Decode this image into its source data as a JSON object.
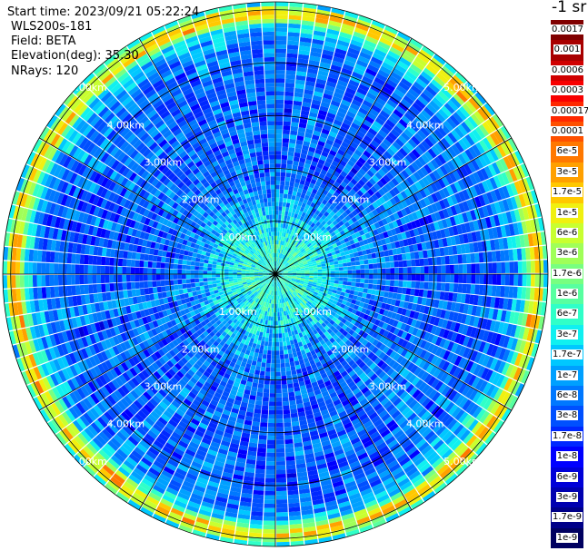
{
  "info": {
    "start_time": "Start time: 2023/09/21 05:22:24",
    "instrument": "WLS200s-181",
    "field": "Field: BETA",
    "elevation": "Elevation(deg): 35.30",
    "nrays": "NRays: 120"
  },
  "colorbar": {
    "unit": "-1 sr",
    "labels": [
      "0.0017",
      "0.001",
      "0.0006",
      "0.0003",
      "0.00017",
      "0.0001",
      "6e-5",
      "3e-5",
      "1.7e-5",
      "1e-5",
      "6e-6",
      "3e-6",
      "1.7e-6",
      "1e-6",
      "6e-7",
      "3e-7",
      "1.7e-7",
      "1e-7",
      "6e-8",
      "3e-8",
      "1.7e-8",
      "1e-8",
      "6e-9",
      "3e-9",
      "1.7e-9",
      "1e-9"
    ],
    "colors": [
      "#800000",
      "#a80000",
      "#d00000",
      "#f80000",
      "#ff2800",
      "#ff5000",
      "#ff7800",
      "#ffa000",
      "#ffc800",
      "#f0f010",
      "#c8ff30",
      "#a0ff58",
      "#78ff80",
      "#58ffa0",
      "#30ffc8",
      "#10f0f0",
      "#00c8ff",
      "#00a0ff",
      "#0078ff",
      "#0050ff",
      "#0028ff",
      "#0000ff",
      "#0000d8",
      "#0000b0",
      "#000088",
      "#000060"
    ]
  },
  "chart_data": {
    "type": "heatmap",
    "projection": "polar (PPI scan)",
    "field": "BETA",
    "nrays": 120,
    "range_rings_km": [
      1,
      2,
      3,
      4,
      5
    ],
    "range_ring_labels": [
      "1.00km",
      "2.00km",
      "3.00km",
      "4.00km",
      "5.00km"
    ],
    "max_range_km": 5.15,
    "radial_lines_deg": [
      0,
      30,
      60,
      90,
      120,
      150,
      180,
      210,
      240,
      270,
      300,
      330
    ],
    "color_scale": "log",
    "vmin": 1e-09,
    "vmax": 0.0017,
    "range_profile": [
      {
        "range_km": 0.0,
        "beta": 3e-07
      },
      {
        "range_km": 0.5,
        "beta": 4e-07
      },
      {
        "range_km": 1.0,
        "beta": 1.7e-07
      },
      {
        "range_km": 1.5,
        "beta": 6e-08
      },
      {
        "range_km": 2.0,
        "beta": 3e-08
      },
      {
        "range_km": 2.5,
        "beta": 3e-08
      },
      {
        "range_km": 3.0,
        "beta": 3e-08
      },
      {
        "range_km": 3.5,
        "beta": 3e-08
      },
      {
        "range_km": 4.0,
        "beta": 3e-08
      },
      {
        "range_km": 4.4,
        "beta": 4e-08
      },
      {
        "range_km": 4.7,
        "beta": 1.7e-07
      },
      {
        "range_km": 4.9,
        "beta": 1.7e-05
      },
      {
        "range_km": 5.05,
        "beta": 3e-06
      },
      {
        "range_km": 5.15,
        "beta": 6e-08
      }
    ]
  }
}
